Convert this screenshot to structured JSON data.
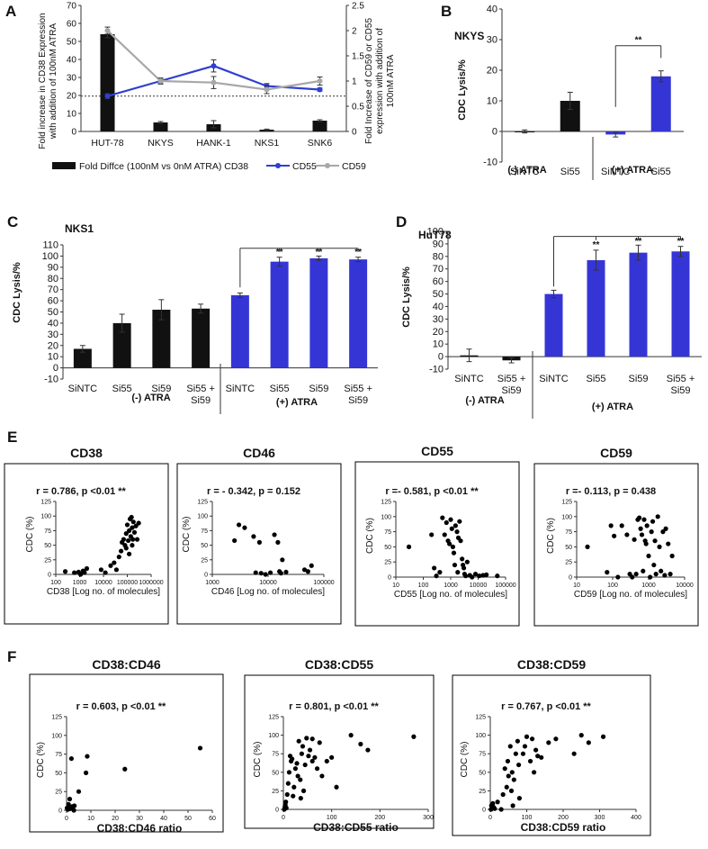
{
  "colors": {
    "black_bar": "#111111",
    "blue": "#3535d6",
    "grey": "#a8a8a8",
    "blue_line": "#2f3fd0"
  },
  "panels": {
    "A": {
      "letter": "A",
      "yleft_label": [
        "Fold increase in CD38 Expression",
        "with addition of 100nM ATRA"
      ],
      "yright_label": [
        "Fold Increase of CD59 or CD55",
        "expression with addition of",
        "100nM ATRA"
      ],
      "legend": {
        "bar": "Fold Diffce (100nM vs 0nM ATRA) CD38",
        "cd55": "CD55",
        "cd59": "CD59"
      }
    },
    "B": {
      "letter": "B",
      "title": "NKYS",
      "ylabel": "CDC Lysis/%",
      "groups": [
        "(-) ATRA",
        "(+) ATRA"
      ],
      "sig": "**"
    },
    "C": {
      "letter": "C",
      "title": "NKS1",
      "ylabel": "CDC Lysis/%",
      "groups": [
        "(-) ATRA",
        "(+) ATRA"
      ],
      "sig": "**"
    },
    "D": {
      "letter": "D",
      "title": "HuT78",
      "ylabel": "CDC Lysis/%",
      "groups": [
        "(-) ATRA",
        "(+) ATRA"
      ],
      "sig": "**"
    },
    "E": {
      "letter": "E"
    },
    "F": {
      "letter": "F"
    }
  },
  "chart_data": [
    {
      "id": "A",
      "type": "bar+line",
      "categories": [
        "HUT-78",
        "NKYS",
        "HANK-1",
        "NKS1",
        "SNK6"
      ],
      "left_ylim": [
        0,
        70
      ],
      "left_ticks": [
        0,
        10,
        20,
        30,
        40,
        50,
        60,
        70
      ],
      "right_ylim": [
        0,
        2.5
      ],
      "right_ticks": [
        "0",
        "0.5",
        "1",
        "1.5",
        "2",
        "2.5"
      ],
      "bar_values": [
        54,
        5,
        4,
        1,
        6
      ],
      "bar_errors": [
        2,
        0.5,
        2,
        0.3,
        0.5
      ],
      "series": [
        {
          "name": "CD55",
          "values": [
            0.7,
            1.0,
            1.3,
            0.9,
            0.83
          ],
          "errors": [
            0.05,
            0.05,
            0.12,
            0.05,
            0.03
          ]
        },
        {
          "name": "CD59",
          "values": [
            2.0,
            1.0,
            0.97,
            0.83,
            1.0
          ],
          "errors": [
            0.07,
            0.06,
            0.12,
            0.08,
            0.08
          ]
        }
      ],
      "reference_line": 0.7
    },
    {
      "id": "B",
      "type": "bar",
      "categories": [
        "SiNTC",
        "Si55",
        "SiNTC",
        "Si55"
      ],
      "values": [
        0,
        10,
        -1,
        18
      ],
      "errors": [
        0.5,
        2.8,
        0.8,
        1.8
      ],
      "atra": [
        false,
        false,
        true,
        true
      ],
      "ylim": [
        -10,
        40
      ],
      "ticks": [
        -10,
        0,
        10,
        20,
        30,
        40
      ]
    },
    {
      "id": "C",
      "type": "bar",
      "categories": [
        "SiNTC",
        "Si55",
        "Si59",
        "Si55 + Si59",
        "SiNTC",
        "Si55",
        "Si59",
        "Si55 + Si59"
      ],
      "values": [
        17,
        40,
        52,
        53,
        65,
        95,
        98,
        97
      ],
      "errors": [
        3,
        8,
        9,
        4,
        2,
        4,
        2,
        2
      ],
      "atra": [
        false,
        false,
        false,
        false,
        true,
        true,
        true,
        true
      ],
      "ylim": [
        -10,
        110
      ],
      "ticks": [
        -10,
        0,
        10,
        20,
        30,
        40,
        50,
        60,
        70,
        80,
        90,
        100,
        110
      ]
    },
    {
      "id": "D",
      "type": "bar",
      "categories": [
        "SiNTC",
        "Si55 + Si59",
        "SiNTC",
        "Si55",
        "Si59",
        "Si55 + Si59"
      ],
      "values": [
        1,
        -3,
        50,
        77,
        83,
        84
      ],
      "errors": [
        5,
        2,
        3,
        8,
        6,
        4
      ],
      "atra": [
        false,
        false,
        true,
        true,
        true,
        true
      ],
      "ylim": [
        -10,
        100
      ],
      "ticks": [
        -10,
        0,
        10,
        20,
        30,
        40,
        50,
        60,
        70,
        80,
        90,
        100
      ]
    },
    {
      "id": "E1",
      "type": "scatter",
      "title": "CD38",
      "stat": "r = 0.786,  p <0.01 **",
      "xlabel": "CD38 [Log no. of molecules]",
      "ylabel": "CDC (%)",
      "xscale": "log",
      "xlim": [
        100,
        1000000
      ],
      "xticks": [
        "100",
        "1000",
        "10000",
        "100000",
        "1000000"
      ],
      "ylim": [
        0,
        125
      ],
      "yticks": [
        "0",
        "25",
        "50",
        "75",
        "100",
        "125"
      ],
      "points": [
        [
          250,
          5
        ],
        [
          600,
          3
        ],
        [
          900,
          4
        ],
        [
          1400,
          6
        ],
        [
          1600,
          3
        ],
        [
          2000,
          10
        ],
        [
          1100,
          0
        ],
        [
          8000,
          8
        ],
        [
          12000,
          3
        ],
        [
          20000,
          15
        ],
        [
          28000,
          20
        ],
        [
          35000,
          8
        ],
        [
          45000,
          30
        ],
        [
          55000,
          40
        ],
        [
          60000,
          55
        ],
        [
          70000,
          60
        ],
        [
          80000,
          50
        ],
        [
          90000,
          70
        ],
        [
          100000,
          85
        ],
        [
          110000,
          58
        ],
        [
          120000,
          75
        ],
        [
          130000,
          95
        ],
        [
          140000,
          65
        ],
        [
          150000,
          98
        ],
        [
          160000,
          80
        ],
        [
          170000,
          60
        ],
        [
          180000,
          90
        ],
        [
          200000,
          72
        ],
        [
          230000,
          83
        ],
        [
          260000,
          60
        ],
        [
          300000,
          88
        ],
        [
          120000,
          35
        ],
        [
          90000,
          45
        ],
        [
          160000,
          50
        ]
      ]
    },
    {
      "id": "E2",
      "type": "scatter",
      "title": "CD46",
      "stat": "r = - 0.342,  p = 0.152",
      "xlabel": "CD46 [Log no. of molecules]",
      "ylabel": "CDC (%)",
      "xscale": "log",
      "xlim": [
        1000,
        100000
      ],
      "xticks": [
        "1000",
        "10000",
        "100000"
      ],
      "ylim": [
        0,
        125
      ],
      "yticks": [
        "0",
        "25",
        "50",
        "75",
        "100",
        "125"
      ],
      "points": [
        [
          2500,
          58
        ],
        [
          3000,
          85
        ],
        [
          3800,
          80
        ],
        [
          5500,
          65
        ],
        [
          7000,
          55
        ],
        [
          6000,
          3
        ],
        [
          7500,
          2
        ],
        [
          9000,
          0
        ],
        [
          11000,
          3
        ],
        [
          13000,
          68
        ],
        [
          15000,
          55
        ],
        [
          16000,
          5
        ],
        [
          17000,
          2
        ],
        [
          18000,
          25
        ],
        [
          21000,
          4
        ],
        [
          45000,
          8
        ],
        [
          52000,
          5
        ],
        [
          60000,
          15
        ]
      ]
    },
    {
      "id": "E3",
      "type": "scatter",
      "title": "CD55",
      "stat": "r =- 0.581,   p <0.01  **",
      "xlabel": "CD55 [Log no. of molecules]",
      "ylabel": "CDC (%)",
      "xscale": "log",
      "xlim": [
        10,
        100000
      ],
      "xticks": [
        "10",
        "100",
        "1000",
        "10000",
        "100000"
      ],
      "ylim": [
        0,
        125
      ],
      "yticks": [
        "0",
        "25",
        "50",
        "75",
        "100",
        "125"
      ],
      "points": [
        [
          30,
          50
        ],
        [
          200,
          70
        ],
        [
          250,
          15
        ],
        [
          300,
          2
        ],
        [
          400,
          8
        ],
        [
          500,
          98
        ],
        [
          600,
          70
        ],
        [
          700,
          90
        ],
        [
          800,
          60
        ],
        [
          900,
          55
        ],
        [
          1000,
          95
        ],
        [
          1100,
          80
        ],
        [
          1200,
          50
        ],
        [
          1300,
          40
        ],
        [
          1500,
          85
        ],
        [
          1700,
          75
        ],
        [
          1900,
          65
        ],
        [
          2100,
          92
        ],
        [
          2300,
          60
        ],
        [
          2600,
          30
        ],
        [
          2800,
          20
        ],
        [
          3000,
          15
        ],
        [
          3200,
          5
        ],
        [
          3500,
          2
        ],
        [
          4000,
          25
        ],
        [
          5000,
          3
        ],
        [
          6000,
          0
        ],
        [
          8000,
          5
        ],
        [
          11000,
          2
        ],
        [
          15000,
          3
        ],
        [
          20000,
          4
        ],
        [
          50000,
          2
        ],
        [
          1400,
          20
        ],
        [
          1800,
          8
        ]
      ]
    },
    {
      "id": "E4",
      "type": "scatter",
      "title": "CD59",
      "stat": "r =- 0.113,  p = 0.438",
      "xlabel": "CD59 [Log no. of molecules]",
      "ylabel": "CDC (%)",
      "xscale": "log",
      "xlim": [
        10,
        10000
      ],
      "xticks": [
        "10",
        "100",
        "1000",
        "10000"
      ],
      "ylim": [
        0,
        125
      ],
      "yticks": [
        "0",
        "25",
        "50",
        "75",
        "100",
        "125"
      ],
      "points": [
        [
          20,
          50
        ],
        [
          70,
          8
        ],
        [
          90,
          85
        ],
        [
          110,
          68
        ],
        [
          140,
          0
        ],
        [
          180,
          85
        ],
        [
          250,
          70
        ],
        [
          300,
          5
        ],
        [
          350,
          0
        ],
        [
          400,
          62
        ],
        [
          450,
          5
        ],
        [
          500,
          95
        ],
        [
          550,
          98
        ],
        [
          600,
          80
        ],
        [
          650,
          70
        ],
        [
          700,
          10
        ],
        [
          750,
          95
        ],
        [
          800,
          60
        ],
        [
          850,
          55
        ],
        [
          900,
          85
        ],
        [
          1000,
          35
        ],
        [
          1100,
          0
        ],
        [
          1200,
          75
        ],
        [
          1300,
          92
        ],
        [
          1400,
          20
        ],
        [
          1500,
          60
        ],
        [
          1600,
          5
        ],
        [
          1800,
          100
        ],
        [
          2000,
          50
        ],
        [
          2200,
          10
        ],
        [
          2500,
          75
        ],
        [
          2800,
          3
        ],
        [
          3000,
          80
        ],
        [
          3500,
          55
        ],
        [
          4000,
          5
        ],
        [
          4500,
          35
        ]
      ]
    },
    {
      "id": "F1",
      "type": "scatter",
      "title": "CD38:CD46",
      "stat": "r = 0.603,  p <0.01 **",
      "xlabel": "CD38:CD46 ratio",
      "ylabel": "CDC (%)",
      "xlim": [
        0,
        60
      ],
      "xticks": [
        "0",
        "10",
        "20",
        "30",
        "40",
        "50",
        "60"
      ],
      "ylim": [
        0,
        125
      ],
      "yticks": [
        "0",
        "25",
        "50",
        "75",
        "100",
        "125"
      ],
      "points": [
        [
          0.2,
          3
        ],
        [
          0.5,
          1
        ],
        [
          0.8,
          8
        ],
        [
          1,
          4
        ],
        [
          1.3,
          15
        ],
        [
          1.5,
          2
        ],
        [
          2,
          69
        ],
        [
          2.3,
          5
        ],
        [
          3,
          0
        ],
        [
          3.2,
          6
        ],
        [
          5,
          25
        ],
        [
          8,
          50
        ],
        [
          8.5,
          72
        ],
        [
          24,
          55
        ],
        [
          55,
          83
        ]
      ]
    },
    {
      "id": "F2",
      "type": "scatter",
      "title": "CD38:CD55",
      "stat": "r = 0.801,   p <0.01 **",
      "xlabel": "CD38:CD55 ratio",
      "ylabel": "CDC (%)",
      "xlim": [
        0,
        300
      ],
      "xticks": [
        "0",
        "100",
        "200",
        "300"
      ],
      "ylim": [
        0,
        125
      ],
      "yticks": [
        "0",
        "25",
        "50",
        "75",
        "100",
        "125"
      ],
      "points": [
        [
          2,
          0
        ],
        [
          3,
          3
        ],
        [
          4,
          6
        ],
        [
          5,
          10
        ],
        [
          6,
          2
        ],
        [
          8,
          20
        ],
        [
          10,
          35
        ],
        [
          12,
          50
        ],
        [
          14,
          72
        ],
        [
          16,
          65
        ],
        [
          18,
          68
        ],
        [
          20,
          18
        ],
        [
          22,
          30
        ],
        [
          25,
          55
        ],
        [
          28,
          62
        ],
        [
          30,
          45
        ],
        [
          32,
          92
        ],
        [
          35,
          40
        ],
        [
          38,
          75
        ],
        [
          40,
          85
        ],
        [
          42,
          25
        ],
        [
          45,
          60
        ],
        [
          48,
          96
        ],
        [
          52,
          72
        ],
        [
          55,
          80
        ],
        [
          60,
          65
        ],
        [
          65,
          70
        ],
        [
          70,
          55
        ],
        [
          75,
          90
        ],
        [
          80,
          45
        ],
        [
          90,
          65
        ],
        [
          100,
          70
        ],
        [
          110,
          30
        ],
        [
          140,
          100
        ],
        [
          160,
          88
        ],
        [
          175,
          80
        ],
        [
          270,
          98
        ],
        [
          36,
          15
        ],
        [
          60,
          95
        ]
      ]
    },
    {
      "id": "F3",
      "type": "scatter",
      "title": "CD38:CD59",
      "stat": "r = 0.767,  p <0.01 **",
      "xlabel": "CD38:CD59 ratio",
      "ylabel": "CDC (%)",
      "xlim": [
        0,
        400
      ],
      "xticks": [
        "0",
        "100",
        "200",
        "300",
        "400"
      ],
      "ylim": [
        0,
        125
      ],
      "yticks": [
        "0",
        "25",
        "50",
        "75",
        "100",
        "125"
      ],
      "points": [
        [
          2,
          0
        ],
        [
          3,
          5
        ],
        [
          5,
          2
        ],
        [
          7,
          8
        ],
        [
          9,
          3
        ],
        [
          12,
          1
        ],
        [
          20,
          10
        ],
        [
          30,
          0
        ],
        [
          35,
          20
        ],
        [
          40,
          55
        ],
        [
          45,
          30
        ],
        [
          48,
          65
        ],
        [
          50,
          45
        ],
        [
          55,
          85
        ],
        [
          58,
          25
        ],
        [
          60,
          50
        ],
        [
          62,
          5
        ],
        [
          65,
          40
        ],
        [
          70,
          75
        ],
        [
          75,
          92
        ],
        [
          78,
          60
        ],
        [
          80,
          15
        ],
        [
          90,
          75
        ],
        [
          95,
          85
        ],
        [
          100,
          98
        ],
        [
          110,
          65
        ],
        [
          115,
          95
        ],
        [
          120,
          50
        ],
        [
          125,
          80
        ],
        [
          130,
          72
        ],
        [
          140,
          70
        ],
        [
          160,
          90
        ],
        [
          180,
          95
        ],
        [
          230,
          75
        ],
        [
          250,
          100
        ],
        [
          270,
          90
        ],
        [
          310,
          98
        ]
      ]
    }
  ]
}
